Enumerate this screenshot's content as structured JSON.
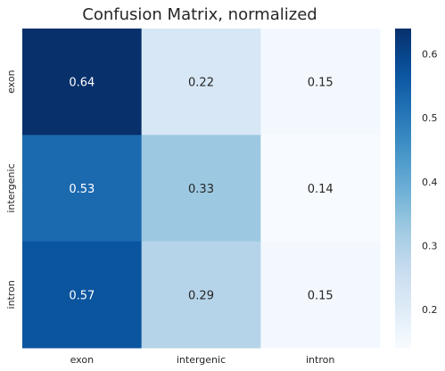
{
  "chart_data": {
    "type": "heatmap",
    "title": "Confusion Matrix, normalized",
    "xlabel": "",
    "ylabel": "",
    "x_categories": [
      "exon",
      "intergenic",
      "intron"
    ],
    "y_categories": [
      "exon",
      "intergenic",
      "intron"
    ],
    "values": [
      [
        0.64,
        0.22,
        0.15
      ],
      [
        0.53,
        0.33,
        0.14
      ],
      [
        0.57,
        0.29,
        0.15
      ]
    ],
    "colormap": "Blues",
    "vmin": 0.14,
    "vmax": 0.64,
    "colorbar_ticks": [
      0.2,
      0.3,
      0.4,
      0.5,
      0.6
    ],
    "grid": false,
    "colors": {
      "dark_text": "#262626",
      "light_text": "#ffffff"
    }
  }
}
